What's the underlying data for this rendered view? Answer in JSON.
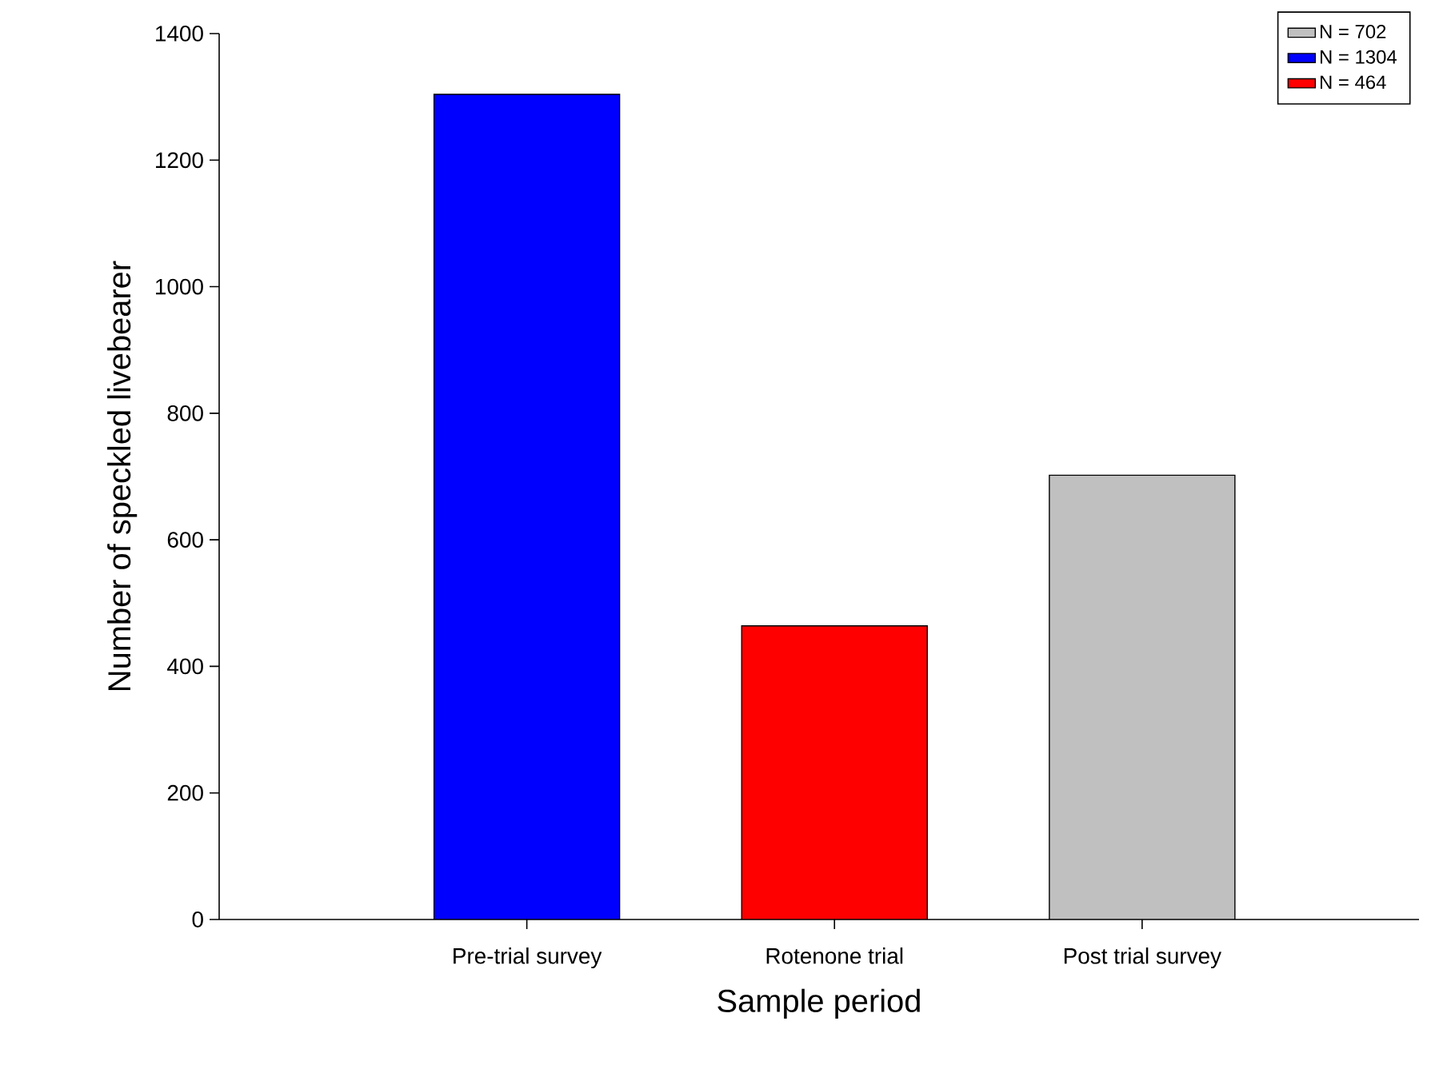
{
  "chart_data": {
    "type": "bar",
    "xlabel": "Sample period",
    "ylabel": "Number of speckled livebearer",
    "categories": [
      "Pre-trial survey",
      "Rotenone trial",
      "Post trial survey"
    ],
    "series": [
      {
        "name": "N = 702",
        "color": "#c0c0c0",
        "values": [
          null,
          null,
          702
        ]
      },
      {
        "name": "N = 1304",
        "color": "#0000ff",
        "values": [
          1304,
          null,
          null
        ]
      },
      {
        "name": "N = 464",
        "color": "#ff0000",
        "values": [
          null,
          464,
          null
        ]
      }
    ],
    "ylim": [
      0,
      1400
    ],
    "yticks": [
      0,
      200,
      400,
      600,
      800,
      1000,
      1200,
      1400
    ],
    "grid": false,
    "legend": "top right"
  }
}
